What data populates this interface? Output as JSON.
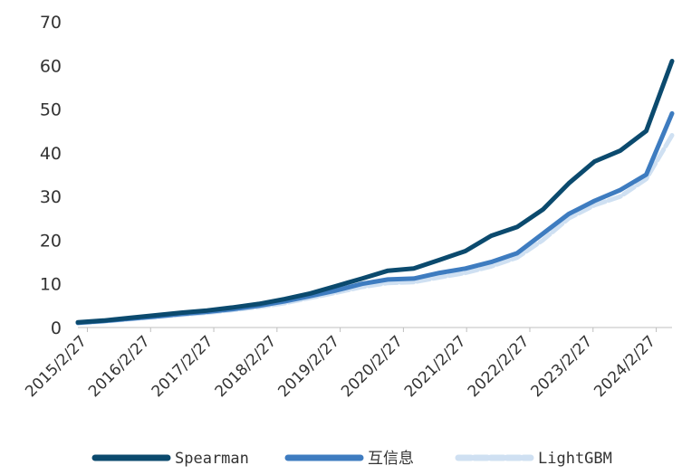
{
  "chart_data": {
    "type": "line",
    "title": "",
    "xlabel": "",
    "ylabel": "",
    "ylim": [
      0,
      70
    ],
    "yticks": [
      0,
      10,
      20,
      30,
      40,
      50,
      60,
      70
    ],
    "grid": false,
    "legend_position": "bottom",
    "x_tick_labels": [
      "2015/2/27",
      "2016/2/27",
      "2017/2/27",
      "2018/2/27",
      "2019/2/27",
      "2020/2/27",
      "2021/2/27",
      "2022/2/27",
      "2023/2/27",
      "2024/2/27"
    ],
    "x_start_year": 2015,
    "x_step": 0.5,
    "series": [
      {
        "name": "Spearman",
        "color": "#0b4a6e",
        "style": "solid",
        "values": [
          1.2,
          1.6,
          2.2,
          2.8,
          3.4,
          3.9,
          4.6,
          5.4,
          6.5,
          7.8,
          9.5,
          11.2,
          13.0,
          13.5,
          15.5,
          17.5,
          21.0,
          23.0,
          27.0,
          33.0,
          38.0,
          40.5,
          45.0,
          61.0
        ]
      },
      {
        "name": "互信息",
        "color": "#3e7cc0",
        "style": "solid",
        "values": [
          1.1,
          1.5,
          2.0,
          2.5,
          3.1,
          3.6,
          4.2,
          5.0,
          6.0,
          7.2,
          8.5,
          10.0,
          11.0,
          11.2,
          12.5,
          13.5,
          15.0,
          17.0,
          21.5,
          26.0,
          29.0,
          31.5,
          35.0,
          49.0
        ]
      },
      {
        "name": "LightGBM",
        "color": "#cfe0f2",
        "style": "dashed",
        "values": [
          1.0,
          1.4,
          1.9,
          2.4,
          2.9,
          3.4,
          4.0,
          4.7,
          5.6,
          6.8,
          8.0,
          9.3,
          10.2,
          10.4,
          11.5,
          12.5,
          14.0,
          16.0,
          20.0,
          25.0,
          28.0,
          30.0,
          34.0,
          44.0
        ]
      }
    ]
  }
}
